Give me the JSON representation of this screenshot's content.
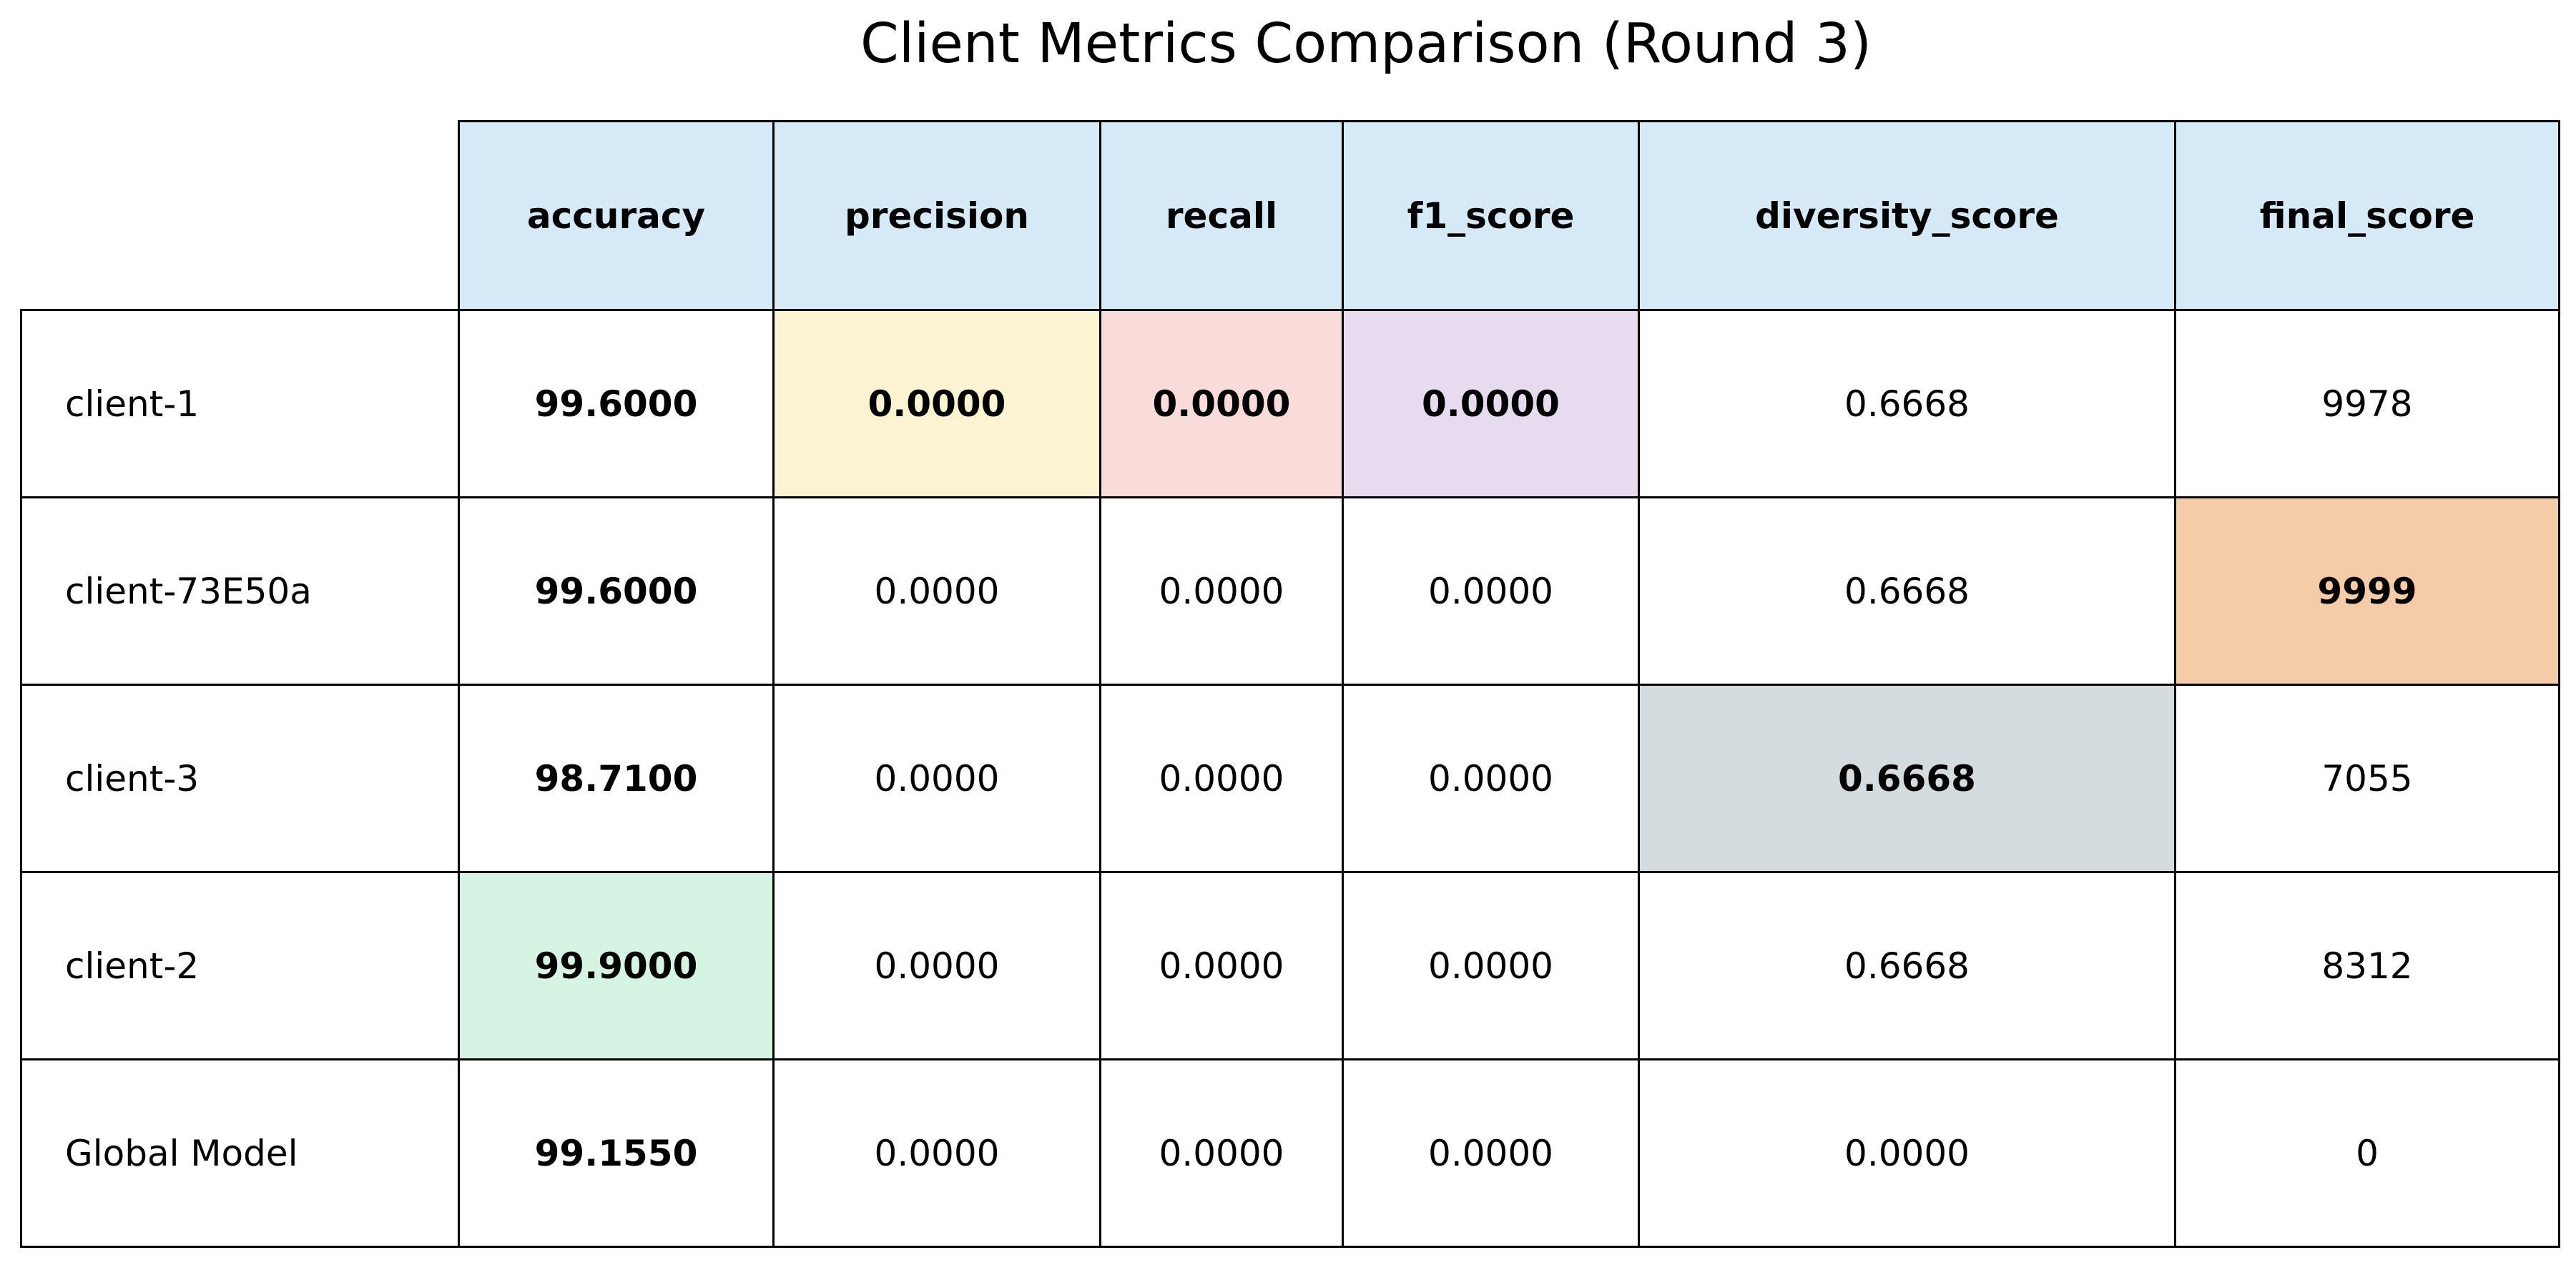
{
  "chart_data": {
    "type": "table",
    "title": "Client Metrics Comparison (Round 3)",
    "columns": [
      "accuracy",
      "precision",
      "recall",
      "f1_score",
      "diversity_score",
      "final_score"
    ],
    "header_color": "#d6e9f7",
    "rows": [
      {
        "label": "client-1",
        "cells": [
          {
            "text": "99.6000",
            "bold": true,
            "highlight": null
          },
          {
            "text": "0.0000",
            "bold": true,
            "highlight": "#fcf3d2"
          },
          {
            "text": "0.0000",
            "bold": true,
            "highlight": "#f9dcd9"
          },
          {
            "text": "0.0000",
            "bold": true,
            "highlight": "#e7dbf0"
          },
          {
            "text": "0.6668",
            "bold": false,
            "highlight": null
          },
          {
            "text": "9978",
            "bold": false,
            "highlight": null
          }
        ]
      },
      {
        "label": "client-73E50a",
        "cells": [
          {
            "text": "99.6000",
            "bold": true,
            "highlight": null
          },
          {
            "text": "0.0000",
            "bold": false,
            "highlight": null
          },
          {
            "text": "0.0000",
            "bold": false,
            "highlight": null
          },
          {
            "text": "0.0000",
            "bold": false,
            "highlight": null
          },
          {
            "text": "0.6668",
            "bold": false,
            "highlight": null
          },
          {
            "text": "9999",
            "bold": true,
            "highlight": "#f5cca8"
          }
        ]
      },
      {
        "label": "client-3",
        "cells": [
          {
            "text": "98.7100",
            "bold": true,
            "highlight": null
          },
          {
            "text": "0.0000",
            "bold": false,
            "highlight": null
          },
          {
            "text": "0.0000",
            "bold": false,
            "highlight": null
          },
          {
            "text": "0.0000",
            "bold": false,
            "highlight": null
          },
          {
            "text": "0.6668",
            "bold": true,
            "highlight": "#d5dce0"
          },
          {
            "text": "7055",
            "bold": false,
            "highlight": null
          }
        ]
      },
      {
        "label": "client-2",
        "cells": [
          {
            "text": "99.9000",
            "bold": true,
            "highlight": "#d5f4e3"
          },
          {
            "text": "0.0000",
            "bold": false,
            "highlight": null
          },
          {
            "text": "0.0000",
            "bold": false,
            "highlight": null
          },
          {
            "text": "0.0000",
            "bold": false,
            "highlight": null
          },
          {
            "text": "0.6668",
            "bold": false,
            "highlight": null
          },
          {
            "text": "8312",
            "bold": false,
            "highlight": null
          }
        ]
      },
      {
        "label": "Global Model",
        "cells": [
          {
            "text": "99.1550",
            "bold": true,
            "highlight": null
          },
          {
            "text": "0.0000",
            "bold": false,
            "highlight": null
          },
          {
            "text": "0.0000",
            "bold": false,
            "highlight": null
          },
          {
            "text": "0.0000",
            "bold": false,
            "highlight": null
          },
          {
            "text": "0.0000",
            "bold": false,
            "highlight": null
          },
          {
            "text": "0",
            "bold": false,
            "highlight": null
          }
        ]
      }
    ]
  }
}
